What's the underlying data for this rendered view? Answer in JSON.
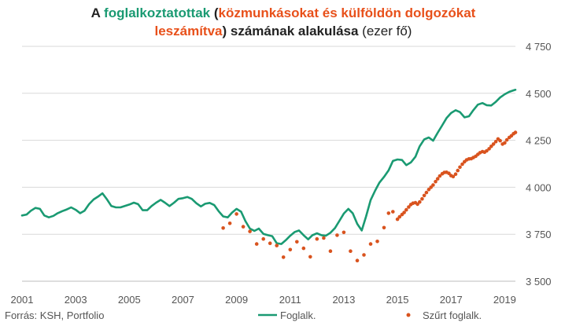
{
  "chart_data": {
    "type": "line",
    "title_parts": [
      {
        "text": "A ",
        "color": "#222222",
        "weight": "bold"
      },
      {
        "text": "foglalkoztatottak",
        "color": "#1a9a72",
        "weight": "bold"
      },
      {
        "text": " (",
        "color": "#222222",
        "weight": "bold"
      },
      {
        "text": "közmunkásokat és külföldön dolgozókat",
        "color": "#e8501a",
        "weight": "bold"
      },
      {
        "text": "leszámítva",
        "color": "#e8501a",
        "weight": "bold"
      },
      {
        "text": ")  ",
        "color": "#222222",
        "weight": "bold"
      },
      {
        "text": "számának alakulása",
        "color": "#222222",
        "weight": "bold"
      },
      {
        "text": " (ezer fő)",
        "color": "#222222",
        "weight": "normal"
      }
    ],
    "title_line_breaks_after_part": [
      3
    ],
    "source": "Forrás: KSH, Portfolio",
    "ylim": [
      3500,
      4750
    ],
    "yticks": [
      {
        "value": 3500,
        "label": "3 500"
      },
      {
        "value": 3750,
        "label": "3 750"
      },
      {
        "value": 4000,
        "label": "4 000"
      },
      {
        "value": 4250,
        "label": "4 250"
      },
      {
        "value": 4500,
        "label": "4 500"
      },
      {
        "value": 4750,
        "label": "4 750"
      }
    ],
    "xlim": [
      2001,
      2019.4
    ],
    "xticks": [
      "2001",
      "2003",
      "2005",
      "2007",
      "2009",
      "2011",
      "2013",
      "2015",
      "2017",
      "2019"
    ],
    "grid": true,
    "legend_position": "bottom",
    "series": [
      {
        "name": "Foglalk.",
        "style": "line",
        "color": "#1a9a72",
        "points": [
          [
            2001.0,
            3850
          ],
          [
            2001.17,
            3855
          ],
          [
            2001.33,
            3875
          ],
          [
            2001.5,
            3890
          ],
          [
            2001.67,
            3885
          ],
          [
            2001.83,
            3850
          ],
          [
            2002.0,
            3840
          ],
          [
            2002.17,
            3848
          ],
          [
            2002.33,
            3862
          ],
          [
            2002.5,
            3873
          ],
          [
            2002.67,
            3882
          ],
          [
            2002.83,
            3893
          ],
          [
            2003.0,
            3880
          ],
          [
            2003.17,
            3862
          ],
          [
            2003.33,
            3875
          ],
          [
            2003.5,
            3910
          ],
          [
            2003.67,
            3935
          ],
          [
            2003.83,
            3950
          ],
          [
            2004.0,
            3968
          ],
          [
            2004.17,
            3935
          ],
          [
            2004.33,
            3900
          ],
          [
            2004.5,
            3893
          ],
          [
            2004.67,
            3893
          ],
          [
            2004.83,
            3900
          ],
          [
            2005.0,
            3908
          ],
          [
            2005.17,
            3918
          ],
          [
            2005.33,
            3910
          ],
          [
            2005.5,
            3878
          ],
          [
            2005.67,
            3878
          ],
          [
            2005.83,
            3900
          ],
          [
            2006.0,
            3918
          ],
          [
            2006.17,
            3933
          ],
          [
            2006.33,
            3918
          ],
          [
            2006.5,
            3900
          ],
          [
            2006.67,
            3918
          ],
          [
            2006.83,
            3938
          ],
          [
            2007.0,
            3942
          ],
          [
            2007.17,
            3948
          ],
          [
            2007.33,
            3938
          ],
          [
            2007.5,
            3915
          ],
          [
            2007.67,
            3898
          ],
          [
            2007.83,
            3912
          ],
          [
            2008.0,
            3917
          ],
          [
            2008.17,
            3905
          ],
          [
            2008.33,
            3873
          ],
          [
            2008.5,
            3845
          ],
          [
            2008.67,
            3840
          ],
          [
            2008.83,
            3865
          ],
          [
            2009.0,
            3885
          ],
          [
            2009.17,
            3870
          ],
          [
            2009.33,
            3820
          ],
          [
            2009.5,
            3780
          ],
          [
            2009.67,
            3768
          ],
          [
            2009.83,
            3780
          ],
          [
            2010.0,
            3752
          ],
          [
            2010.17,
            3745
          ],
          [
            2010.33,
            3740
          ],
          [
            2010.5,
            3702
          ],
          [
            2010.67,
            3698
          ],
          [
            2010.83,
            3718
          ],
          [
            2011.0,
            3742
          ],
          [
            2011.17,
            3762
          ],
          [
            2011.33,
            3770
          ],
          [
            2011.5,
            3745
          ],
          [
            2011.67,
            3723
          ],
          [
            2011.83,
            3745
          ],
          [
            2012.0,
            3755
          ],
          [
            2012.17,
            3745
          ],
          [
            2012.33,
            3742
          ],
          [
            2012.5,
            3758
          ],
          [
            2012.67,
            3783
          ],
          [
            2012.83,
            3820
          ],
          [
            2013.0,
            3860
          ],
          [
            2013.17,
            3885
          ],
          [
            2013.33,
            3862
          ],
          [
            2013.5,
            3805
          ],
          [
            2013.67,
            3770
          ],
          [
            2013.83,
            3845
          ],
          [
            2014.0,
            3932
          ],
          [
            2014.17,
            3983
          ],
          [
            2014.33,
            4025
          ],
          [
            2014.5,
            4055
          ],
          [
            2014.67,
            4090
          ],
          [
            2014.83,
            4140
          ],
          [
            2015.0,
            4148
          ],
          [
            2015.17,
            4145
          ],
          [
            2015.33,
            4118
          ],
          [
            2015.5,
            4132
          ],
          [
            2015.67,
            4162
          ],
          [
            2015.83,
            4218
          ],
          [
            2016.0,
            4255
          ],
          [
            2016.17,
            4265
          ],
          [
            2016.33,
            4248
          ],
          [
            2016.5,
            4290
          ],
          [
            2016.67,
            4330
          ],
          [
            2016.83,
            4368
          ],
          [
            2017.0,
            4395
          ],
          [
            2017.17,
            4410
          ],
          [
            2017.33,
            4400
          ],
          [
            2017.5,
            4372
          ],
          [
            2017.67,
            4378
          ],
          [
            2017.83,
            4410
          ],
          [
            2018.0,
            4440
          ],
          [
            2018.17,
            4448
          ],
          [
            2018.33,
            4437
          ],
          [
            2018.5,
            4435
          ],
          [
            2018.67,
            4455
          ],
          [
            2018.83,
            4478
          ],
          [
            2019.0,
            4495
          ],
          [
            2019.17,
            4508
          ],
          [
            2019.33,
            4516
          ],
          [
            2019.4,
            4519
          ]
        ]
      },
      {
        "name": "Szűrt foglalk.",
        "style": "dots",
        "color": "#d9531e",
        "points": [
          [
            2008.5,
            3783
          ],
          [
            2008.75,
            3808
          ],
          [
            2009.0,
            3858
          ],
          [
            2009.25,
            3790
          ],
          [
            2009.5,
            3765
          ],
          [
            2009.75,
            3698
          ],
          [
            2010.0,
            3725
          ],
          [
            2010.25,
            3702
          ],
          [
            2010.5,
            3690
          ],
          [
            2010.75,
            3628
          ],
          [
            2011.0,
            3668
          ],
          [
            2011.25,
            3710
          ],
          [
            2011.5,
            3675
          ],
          [
            2011.75,
            3630
          ],
          [
            2012.0,
            3725
          ],
          [
            2012.25,
            3730
          ],
          [
            2012.5,
            3660
          ],
          [
            2012.75,
            3745
          ],
          [
            2013.0,
            3760
          ],
          [
            2013.25,
            3660
          ],
          [
            2013.5,
            3610
          ],
          [
            2013.75,
            3640
          ],
          [
            2014.0,
            3698
          ],
          [
            2014.25,
            3712
          ],
          [
            2014.5,
            3785
          ],
          [
            2014.67,
            3862
          ],
          [
            2014.83,
            3870
          ],
          [
            2015.0,
            3830
          ],
          [
            2015.08,
            3843
          ],
          [
            2015.17,
            3855
          ],
          [
            2015.25,
            3866
          ],
          [
            2015.33,
            3880
          ],
          [
            2015.42,
            3895
          ],
          [
            2015.5,
            3908
          ],
          [
            2015.58,
            3915
          ],
          [
            2015.67,
            3918
          ],
          [
            2015.75,
            3910
          ],
          [
            2015.83,
            3922
          ],
          [
            2015.92,
            3938
          ],
          [
            2016.0,
            3956
          ],
          [
            2016.08,
            3972
          ],
          [
            2016.17,
            3988
          ],
          [
            2016.25,
            4000
          ],
          [
            2016.33,
            4012
          ],
          [
            2016.42,
            4030
          ],
          [
            2016.5,
            4045
          ],
          [
            2016.58,
            4060
          ],
          [
            2016.67,
            4072
          ],
          [
            2016.75,
            4079
          ],
          [
            2016.83,
            4080
          ],
          [
            2016.92,
            4074
          ],
          [
            2017.0,
            4062
          ],
          [
            2017.08,
            4057
          ],
          [
            2017.17,
            4070
          ],
          [
            2017.25,
            4089
          ],
          [
            2017.33,
            4107
          ],
          [
            2017.42,
            4123
          ],
          [
            2017.5,
            4136
          ],
          [
            2017.58,
            4146
          ],
          [
            2017.67,
            4151
          ],
          [
            2017.75,
            4152
          ],
          [
            2017.83,
            4158
          ],
          [
            2017.92,
            4165
          ],
          [
            2018.0,
            4175
          ],
          [
            2018.08,
            4184
          ],
          [
            2018.17,
            4190
          ],
          [
            2018.25,
            4187
          ],
          [
            2018.33,
            4194
          ],
          [
            2018.42,
            4205
          ],
          [
            2018.5,
            4218
          ],
          [
            2018.58,
            4230
          ],
          [
            2018.67,
            4243
          ],
          [
            2018.75,
            4257
          ],
          [
            2018.83,
            4248
          ],
          [
            2018.92,
            4230
          ],
          [
            2019.0,
            4236
          ],
          [
            2019.08,
            4252
          ],
          [
            2019.17,
            4265
          ],
          [
            2019.25,
            4274
          ],
          [
            2019.33,
            4285
          ],
          [
            2019.4,
            4292
          ]
        ]
      }
    ]
  }
}
